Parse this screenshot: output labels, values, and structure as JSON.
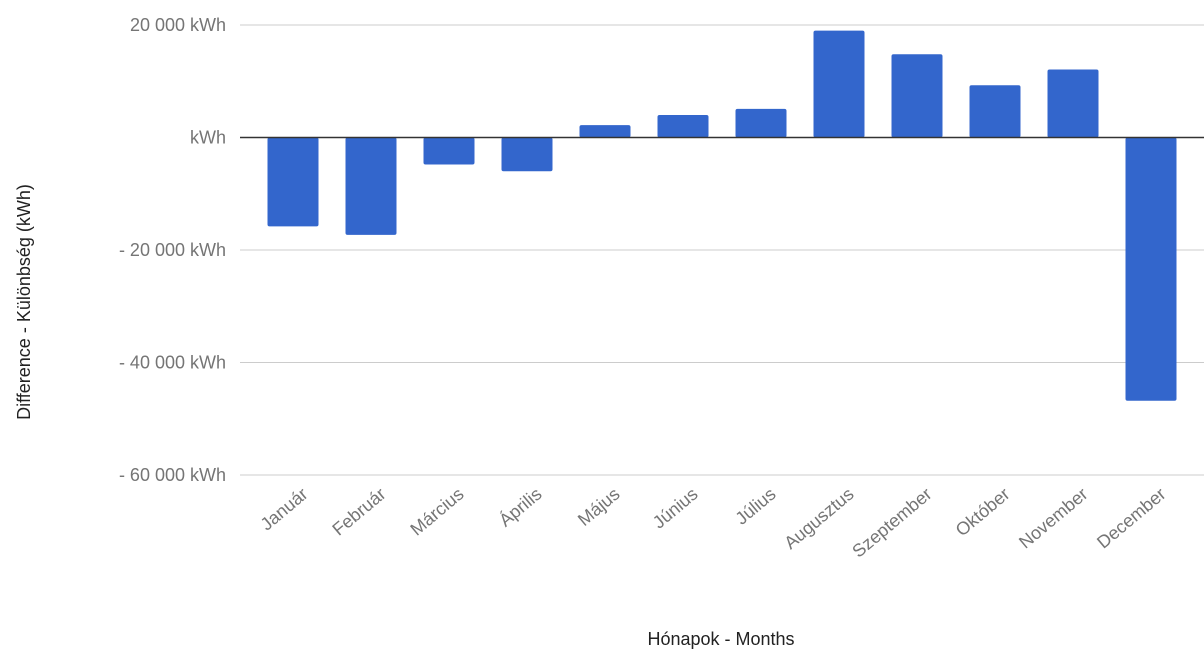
{
  "chart_data": {
    "type": "bar",
    "title": "",
    "xlabel": "Hónapok - Months",
    "ylabel": "Difference - Különbség (kWh)",
    "categories": [
      "Január",
      "Február",
      "Március",
      "Április",
      "Május",
      "Június",
      "Július",
      "Augusztus",
      "Szeptember",
      "Október",
      "November",
      "December"
    ],
    "series": [
      {
        "values": [
          -15800,
          -17300,
          -4800,
          -6000,
          2200,
          4000,
          5100,
          19000,
          14800,
          9300,
          12100,
          -46800
        ],
        "color": "#3366cc"
      }
    ],
    "ylim": [
      -60000,
      20000
    ],
    "yticks": [
      {
        "value": 20000,
        "label": "20 000  kWh"
      },
      {
        "value": 0,
        "label": "kWh"
      },
      {
        "value": -20000,
        "label": "- 20 000  kWh"
      },
      {
        "value": -40000,
        "label": "- 40 000  kWh"
      },
      {
        "value": -60000,
        "label": "- 60 000  kWh"
      }
    ],
    "grid": true,
    "legend": "none",
    "colors": {
      "bar": "#3366cc",
      "gridline": "#cccccc",
      "baseline": "#333333",
      "tick_text": "#757575",
      "title_text": "#222222"
    }
  }
}
